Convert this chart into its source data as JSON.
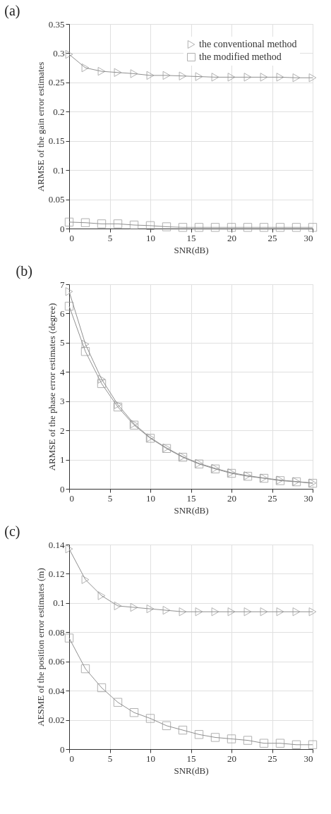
{
  "chart_data": [
    {
      "type": "line",
      "title": "(a)",
      "xlabel": "SNR(dB)",
      "ylabel": "ARMSE of the gain error estimates",
      "x": [
        0,
        2,
        4,
        6,
        8,
        10,
        12,
        14,
        16,
        18,
        20,
        22,
        24,
        26,
        28,
        30
      ],
      "series": [
        {
          "name": "the conventional method",
          "color": "#909090",
          "marker": "triangle",
          "values": [
            0.298,
            0.275,
            0.269,
            0.267,
            0.265,
            0.262,
            0.262,
            0.261,
            0.26,
            0.259,
            0.259,
            0.259,
            0.259,
            0.259,
            0.258,
            0.258
          ]
        },
        {
          "name": "the modified method",
          "color": "#909090",
          "marker": "square",
          "values": [
            0.011,
            0.01,
            0.008,
            0.008,
            0.006,
            0.005,
            0.003,
            0.002,
            0.002,
            0.002,
            0.002,
            0.002,
            0.002,
            0.002,
            0.002,
            0.002
          ]
        }
      ],
      "xlim": [
        0,
        30
      ],
      "xticks": [
        0,
        5,
        10,
        15,
        20,
        25,
        30
      ],
      "ylim": [
        0,
        0.35
      ],
      "yticks": [
        0,
        0.05,
        0.1,
        0.15,
        0.2,
        0.25,
        0.3,
        0.35
      ],
      "grid": true,
      "legend": "top right",
      "line_style": "solid"
    },
    {
      "type": "line",
      "title": "(b)",
      "xlabel": "SNR(dB)",
      "ylabel": "ARMSE of the phase error estimates (degree)",
      "x": [
        0,
        2,
        4,
        6,
        8,
        10,
        12,
        14,
        16,
        18,
        20,
        22,
        24,
        26,
        28,
        30
      ],
      "series": [
        {
          "name": "the conventional method",
          "color": "#909090",
          "marker": "triangle",
          "values": [
            6.75,
            4.95,
            3.75,
            2.88,
            2.22,
            1.75,
            1.4,
            1.1,
            0.87,
            0.7,
            0.55,
            0.45,
            0.37,
            0.3,
            0.25,
            0.2
          ]
        },
        {
          "name": "the modified method",
          "color": "#909090",
          "marker": "square",
          "values": [
            6.25,
            4.7,
            3.6,
            2.8,
            2.18,
            1.73,
            1.38,
            1.08,
            0.85,
            0.68,
            0.53,
            0.43,
            0.36,
            0.28,
            0.24,
            0.19
          ]
        }
      ],
      "xlim": [
        0,
        30
      ],
      "xticks": [
        0,
        5,
        10,
        15,
        20,
        25,
        30
      ],
      "ylim": [
        0,
        7
      ],
      "yticks": [
        0,
        1,
        2,
        3,
        4,
        5,
        6,
        7
      ],
      "grid": true,
      "legend": "top right",
      "line_style": "solid"
    },
    {
      "type": "line",
      "title": "(c)",
      "xlabel": "SNR(dB)",
      "ylabel": "AESME of the position error estimates (m)",
      "x": [
        0,
        2,
        4,
        6,
        8,
        10,
        12,
        14,
        16,
        18,
        20,
        22,
        24,
        26,
        28,
        30
      ],
      "series": [
        {
          "name": "the conventional method",
          "color": "#909090",
          "marker": "triangle",
          "values": [
            0.137,
            0.116,
            0.105,
            0.098,
            0.097,
            0.096,
            0.095,
            0.094,
            0.094,
            0.094,
            0.094,
            0.094,
            0.094,
            0.094,
            0.094,
            0.094
          ]
        },
        {
          "name": "the modified method",
          "color": "#909090",
          "marker": "square",
          "values": [
            0.076,
            0.055,
            0.042,
            0.032,
            0.025,
            0.021,
            0.016,
            0.013,
            0.01,
            0.008,
            0.007,
            0.006,
            0.004,
            0.004,
            0.003,
            0.003
          ]
        }
      ],
      "xlim": [
        0,
        30
      ],
      "xticks": [
        0,
        5,
        10,
        15,
        20,
        25,
        30
      ],
      "ylim": [
        0,
        0.14
      ],
      "yticks": [
        0,
        0.02,
        0.04,
        0.06,
        0.08,
        0.1,
        0.12,
        0.14
      ],
      "grid": true,
      "legend": "top right",
      "line_style": "solid"
    }
  ]
}
